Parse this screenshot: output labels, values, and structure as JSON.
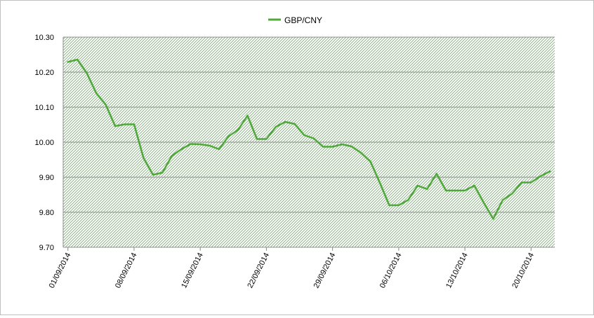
{
  "chart_data": {
    "type": "line",
    "title": "",
    "xlabel": "",
    "ylabel": "",
    "ylim": [
      9.7,
      10.3
    ],
    "yticks": [
      "10.30",
      "10.20",
      "10.10",
      "10.00",
      "9.90",
      "9.80",
      "9.70"
    ],
    "xticks": [
      "01/09/2014",
      "08/09/2014",
      "15/09/2014",
      "22/09/2014",
      "29/09/2014",
      "06/10/2014",
      "13/10/2014",
      "20/10/2014"
    ],
    "legend": "top-center",
    "grid": true,
    "plot_fill": "hatched-green",
    "series": [
      {
        "name": "GBP/CNY",
        "color": "#4ea83a",
        "x": [
          "01/09/2014",
          "02/09/2014",
          "03/09/2014",
          "04/09/2014",
          "05/09/2014",
          "06/09/2014",
          "07/09/2014",
          "08/09/2014",
          "09/09/2014",
          "10/09/2014",
          "11/09/2014",
          "12/09/2014",
          "13/09/2014",
          "14/09/2014",
          "15/09/2014",
          "16/09/2014",
          "17/09/2014",
          "18/09/2014",
          "19/09/2014",
          "20/09/2014",
          "21/09/2014",
          "22/09/2014",
          "23/09/2014",
          "24/09/2014",
          "25/09/2014",
          "26/09/2014",
          "27/09/2014",
          "28/09/2014",
          "29/09/2014",
          "30/09/2014",
          "01/10/2014",
          "02/10/2014",
          "03/10/2014",
          "04/10/2014",
          "05/10/2014",
          "06/10/2014",
          "07/10/2014",
          "08/10/2014",
          "09/10/2014",
          "10/10/2014",
          "11/10/2014",
          "12/10/2014",
          "13/10/2014",
          "14/10/2014",
          "15/10/2014",
          "16/10/2014",
          "17/10/2014",
          "18/10/2014",
          "19/10/2014",
          "20/10/2014",
          "21/10/2014",
          "22/10/2014"
        ],
        "values": [
          10.229,
          10.236,
          10.197,
          10.14,
          10.107,
          10.046,
          10.051,
          10.051,
          9.955,
          9.907,
          9.913,
          9.961,
          9.98,
          9.995,
          9.994,
          9.99,
          9.98,
          10.017,
          10.035,
          10.076,
          10.009,
          10.009,
          10.044,
          10.058,
          10.052,
          10.02,
          10.011,
          9.987,
          9.987,
          9.994,
          9.988,
          9.97,
          9.945,
          9.884,
          9.82,
          9.82,
          9.835,
          9.876,
          9.866,
          9.91,
          9.862,
          9.862,
          9.862,
          9.876,
          9.827,
          9.781,
          9.835,
          9.853,
          9.885,
          9.885,
          9.903,
          9.917
        ]
      }
    ]
  }
}
